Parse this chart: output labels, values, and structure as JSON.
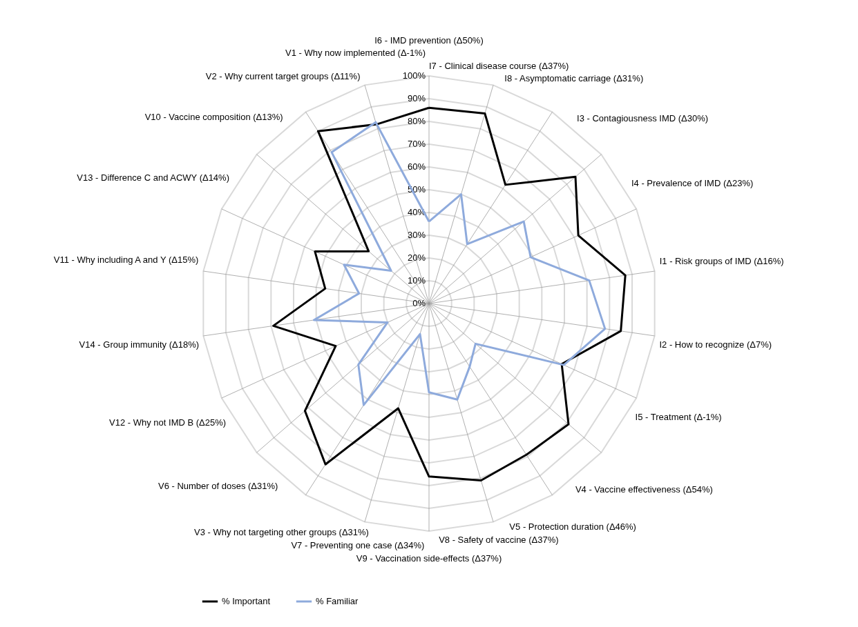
{
  "chart_data": {
    "type": "radar",
    "categories": [
      "I6 - IMD prevention (Δ50%)",
      "I7 - Clinical disease course (Δ37%)",
      "I8 - Asymptomatic carriage (Δ31%)",
      "I3 - Contagiousness IMD (Δ30%)",
      "I4 - Prevalence of IMD (Δ23%)",
      "I1 - Risk groups of IMD (Δ16%)",
      "I2 - How to recognize (Δ7%)",
      "I5 - Treatment (Δ-1%)",
      "V4 - Vaccine effectiveness (Δ54%)",
      "V5 - Protection duration (Δ46%)",
      "V8 - Safety of vaccine (Δ37%)",
      "V9 - Vaccination side-effects (Δ37%)",
      "V7 - Preventing one case (Δ34%)",
      "V3 - Why not targeting other groups (Δ31%)",
      "V6 - Number of doses (Δ31%)",
      "V12 - Why not IMD B (Δ25%)",
      "V14 - Group immunity (Δ18%)",
      "V11 - Why including A and Y (Δ15%)",
      "V13 - Difference C and ACWY (Δ14%)",
      "V10 - Vaccine composition (Δ13%)",
      "V2 - Why current target groups (Δ11%)",
      "V1 - Why now implemented (Δ-1%)"
    ],
    "series": [
      {
        "name": "% Important",
        "color": "#000000",
        "values": [
          86,
          87,
          62,
          85,
          72,
          87,
          85,
          64,
          81,
          79,
          81,
          76,
          48,
          84,
          72,
          45,
          69,
          46,
          55,
          35,
          90,
          82
        ]
      },
      {
        "name": "% Familiar",
        "color": "#8eaadc",
        "values": [
          36,
          50,
          31,
          55,
          49,
          71,
          78,
          65,
          27,
          33,
          44,
          39,
          14,
          53,
          41,
          20,
          51,
          31,
          41,
          22,
          79,
          83
        ]
      }
    ],
    "ylim": [
      0,
      100
    ],
    "yticks": [
      {
        "value": 0,
        "label": "0%"
      },
      {
        "value": 10,
        "label": "10%"
      },
      {
        "value": 20,
        "label": "20%"
      },
      {
        "value": 30,
        "label": "30%"
      },
      {
        "value": 40,
        "label": "40%"
      },
      {
        "value": 50,
        "label": "50%"
      },
      {
        "value": 60,
        "label": "60%"
      },
      {
        "value": 70,
        "label": "70%"
      },
      {
        "value": 80,
        "label": "80%"
      },
      {
        "value": 90,
        "label": "90%"
      },
      {
        "value": 100,
        "label": "100%"
      }
    ],
    "grid": true,
    "legend": "bottom"
  }
}
